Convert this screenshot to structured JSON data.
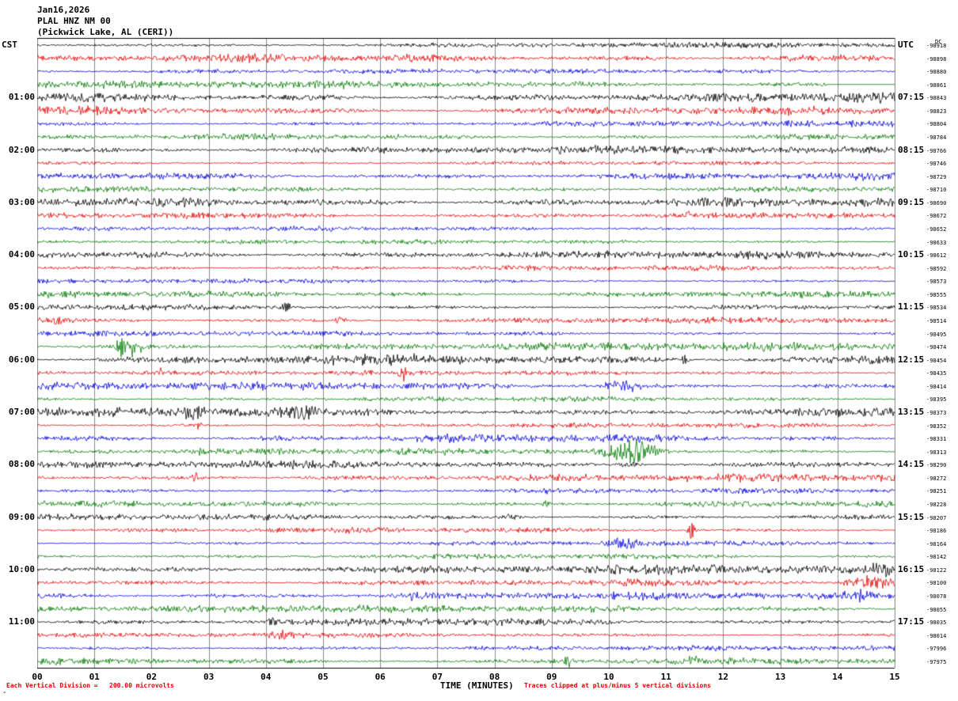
{
  "header": {
    "date": "Jan16,2026",
    "station": "PLAL HNZ NM 00",
    "location": "(Pickwick Lake, AL (CERI))"
  },
  "axes": {
    "left_timezone": "CST",
    "right_timezone": "UTC",
    "xlabel": "TIME (MINUTES)",
    "x_ticks": [
      "00",
      "01",
      "02",
      "03",
      "04",
      "05",
      "06",
      "07",
      "08",
      "09",
      "10",
      "11",
      "12",
      "13",
      "14",
      "15"
    ]
  },
  "footer": {
    "left_note": "Each Vertical Division =   200.00 microvolts",
    "right_note": "Traces clipped at plus/minus 5 vertical divisions",
    "corner_mark": "^"
  },
  "chart_data": {
    "type": "line",
    "title": "PLAL HNZ NM 00 (Pickwick Lake, AL (CERI)) helicorder Jan16,2026",
    "x_range_minutes": [
      0,
      15
    ],
    "minutes_per_line": 15,
    "rows": 48,
    "vertical_division_microvolts": 200.0,
    "clip_divisions": 5,
    "grid_color": "#8a8a8a",
    "frame_color": "#000000",
    "trace_colors": [
      "#000000",
      "#e60000",
      "#0000dd",
      "#007a00"
    ],
    "left_hour_labels": [
      "01:00",
      "02:00",
      "03:00",
      "04:00",
      "05:00",
      "06:00",
      "07:00",
      "08:00",
      "09:00",
      "10:00",
      "11:00"
    ],
    "right_hour_labels": [
      "07:15",
      "08:15",
      "09:15",
      "10:15",
      "11:15",
      "12:15",
      "13:15",
      "14:15",
      "15:15",
      "16:15",
      "17:15"
    ],
    "hour_label_start_row": 4,
    "hour_label_step": 4,
    "dc_header": "DC",
    "dc_values": [
      "-98918",
      "-98898",
      "-98880",
      "-98861",
      "-98843",
      "-98823",
      "-98804",
      "-98784",
      "-98766",
      "-98746",
      "-98729",
      "-98710",
      "-98690",
      "-98672",
      "-98652",
      "-98633",
      "-98612",
      "-98592",
      "-98573",
      "-98555",
      "-98534",
      "-98514",
      "-98495",
      "-98474",
      "-98454",
      "-98435",
      "-98414",
      "-98395",
      "-98373",
      "-98352",
      "-98331",
      "-98313",
      "-98290",
      "-98272",
      "-98251",
      "-98228",
      "-98207",
      "-98186",
      "-98164",
      "-98142",
      "-98122",
      "-98100",
      "-98078",
      "-98055",
      "-98035",
      "-98014",
      "-97996",
      "-97975"
    ],
    "bursts": [
      {
        "row": 13,
        "center": 11.4,
        "width": 0.08,
        "amp": 5
      },
      {
        "row": 19,
        "center": 0.35,
        "width": 0.25,
        "amp": 4
      },
      {
        "row": 20,
        "center": 4.35,
        "width": 0.08,
        "amp": 7
      },
      {
        "row": 21,
        "center": 0.3,
        "width": 0.3,
        "amp": 4
      },
      {
        "row": 21,
        "center": 5.3,
        "width": 0.12,
        "amp": 5
      },
      {
        "row": 23,
        "center": 1.55,
        "width": 0.15,
        "amp": 13
      },
      {
        "row": 23,
        "center": 1.8,
        "width": 0.4,
        "amp": 5
      },
      {
        "row": 24,
        "center": 11.35,
        "width": 0.08,
        "amp": 7
      },
      {
        "row": 25,
        "center": 2.15,
        "width": 0.06,
        "amp": 6
      },
      {
        "row": 25,
        "center": 6.4,
        "width": 0.1,
        "amp": 9
      },
      {
        "row": 26,
        "center": 10.25,
        "width": 0.35,
        "amp": 7
      },
      {
        "row": 28,
        "center": 2.75,
        "width": 0.2,
        "amp": 9
      },
      {
        "row": 28,
        "center": 4.6,
        "width": 0.25,
        "amp": 7
      },
      {
        "row": 29,
        "center": 2.8,
        "width": 0.1,
        "amp": 4
      },
      {
        "row": 31,
        "center": 10.4,
        "width": 0.45,
        "amp": 15
      },
      {
        "row": 31,
        "center": 2.9,
        "width": 0.1,
        "amp": 4
      },
      {
        "row": 32,
        "center": 10.4,
        "width": 0.2,
        "amp": 4
      },
      {
        "row": 33,
        "center": 2.77,
        "width": 0.1,
        "amp": 6
      },
      {
        "row": 34,
        "center": 8.9,
        "width": 0.1,
        "amp": 4
      },
      {
        "row": 35,
        "center": 8.9,
        "width": 0.08,
        "amp": 5
      },
      {
        "row": 36,
        "center": 8.3,
        "width": 0.12,
        "amp": 5
      },
      {
        "row": 37,
        "center": 11.45,
        "width": 0.07,
        "amp": 12
      },
      {
        "row": 38,
        "center": 10.3,
        "width": 0.4,
        "amp": 6
      },
      {
        "row": 40,
        "center": 14.8,
        "width": 0.3,
        "amp": 6
      },
      {
        "row": 41,
        "center": 14.6,
        "width": 0.5,
        "amp": 8
      },
      {
        "row": 42,
        "center": 6.6,
        "width": 0.1,
        "amp": 6
      },
      {
        "row": 42,
        "center": 14.5,
        "width": 0.5,
        "amp": 5
      },
      {
        "row": 44,
        "center": 4.15,
        "width": 0.2,
        "amp": 5
      },
      {
        "row": 45,
        "center": 4.3,
        "width": 0.3,
        "amp": 6
      },
      {
        "row": 47,
        "center": 9.3,
        "width": 0.08,
        "amp": 8
      },
      {
        "row": 47,
        "center": 11.5,
        "width": 0.1,
        "amp": 5
      }
    ],
    "flat_segments": [
      {
        "row": 3,
        "from_minute": 13.8,
        "to_minute": 15
      }
    ]
  }
}
